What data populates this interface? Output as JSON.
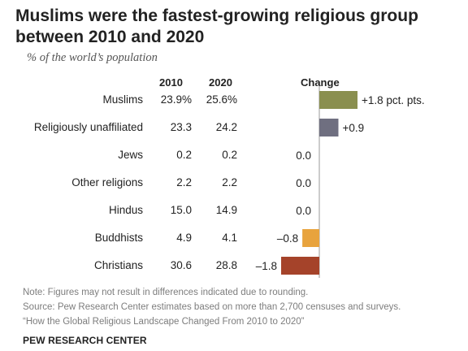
{
  "title": "Muslims were the fastest-growing religious group between 2010 and 2020",
  "subtitle": "% of the world’s population",
  "columns": {
    "y2010": "2010",
    "y2020": "2020",
    "change": "Change"
  },
  "chart_data": {
    "type": "bar",
    "orientation": "horizontal",
    "title": "Muslims were the fastest-growing religious group between 2010 and 2020",
    "subtitle": "% of the world’s population",
    "categories": [
      "Muslims",
      "Religiously unaffiliated",
      "Jews",
      "Other religions",
      "Hindus",
      "Buddhists",
      "Christians"
    ],
    "series": [
      {
        "name": "Change",
        "values": [
          1.8,
          0.9,
          0.0,
          0.0,
          0.0,
          -0.8,
          -1.8
        ]
      }
    ],
    "table": {
      "2010": [
        "23.9%",
        "23.3",
        "0.2",
        "2.2",
        "15.0",
        "4.9",
        "30.6"
      ],
      "2020": [
        "25.6%",
        "24.2",
        "0.2",
        "2.2",
        "14.9",
        "4.1",
        "28.8"
      ]
    },
    "change_labels": [
      "+1.8 pct. pts.",
      "+0.9",
      "0.0",
      "0.0",
      "0.0",
      "–0.8",
      "–1.8"
    ],
    "colors": [
      "#8a8f4f",
      "#6f6f80",
      "#888888",
      "#888888",
      "#888888",
      "#e8a33d",
      "#a5432a"
    ],
    "xlim": [
      -1.8,
      1.8
    ],
    "grid": false,
    "legend": "none"
  },
  "notes": [
    "Note: Figures may not result in differences indicated due to rounding.",
    "Source: Pew Research Center estimates based on more than 2,700 censuses and surveys.",
    "“How the Global Religious Landscape Changed From 2010 to 2020”"
  ],
  "footer": "PEW RESEARCH CENTER"
}
